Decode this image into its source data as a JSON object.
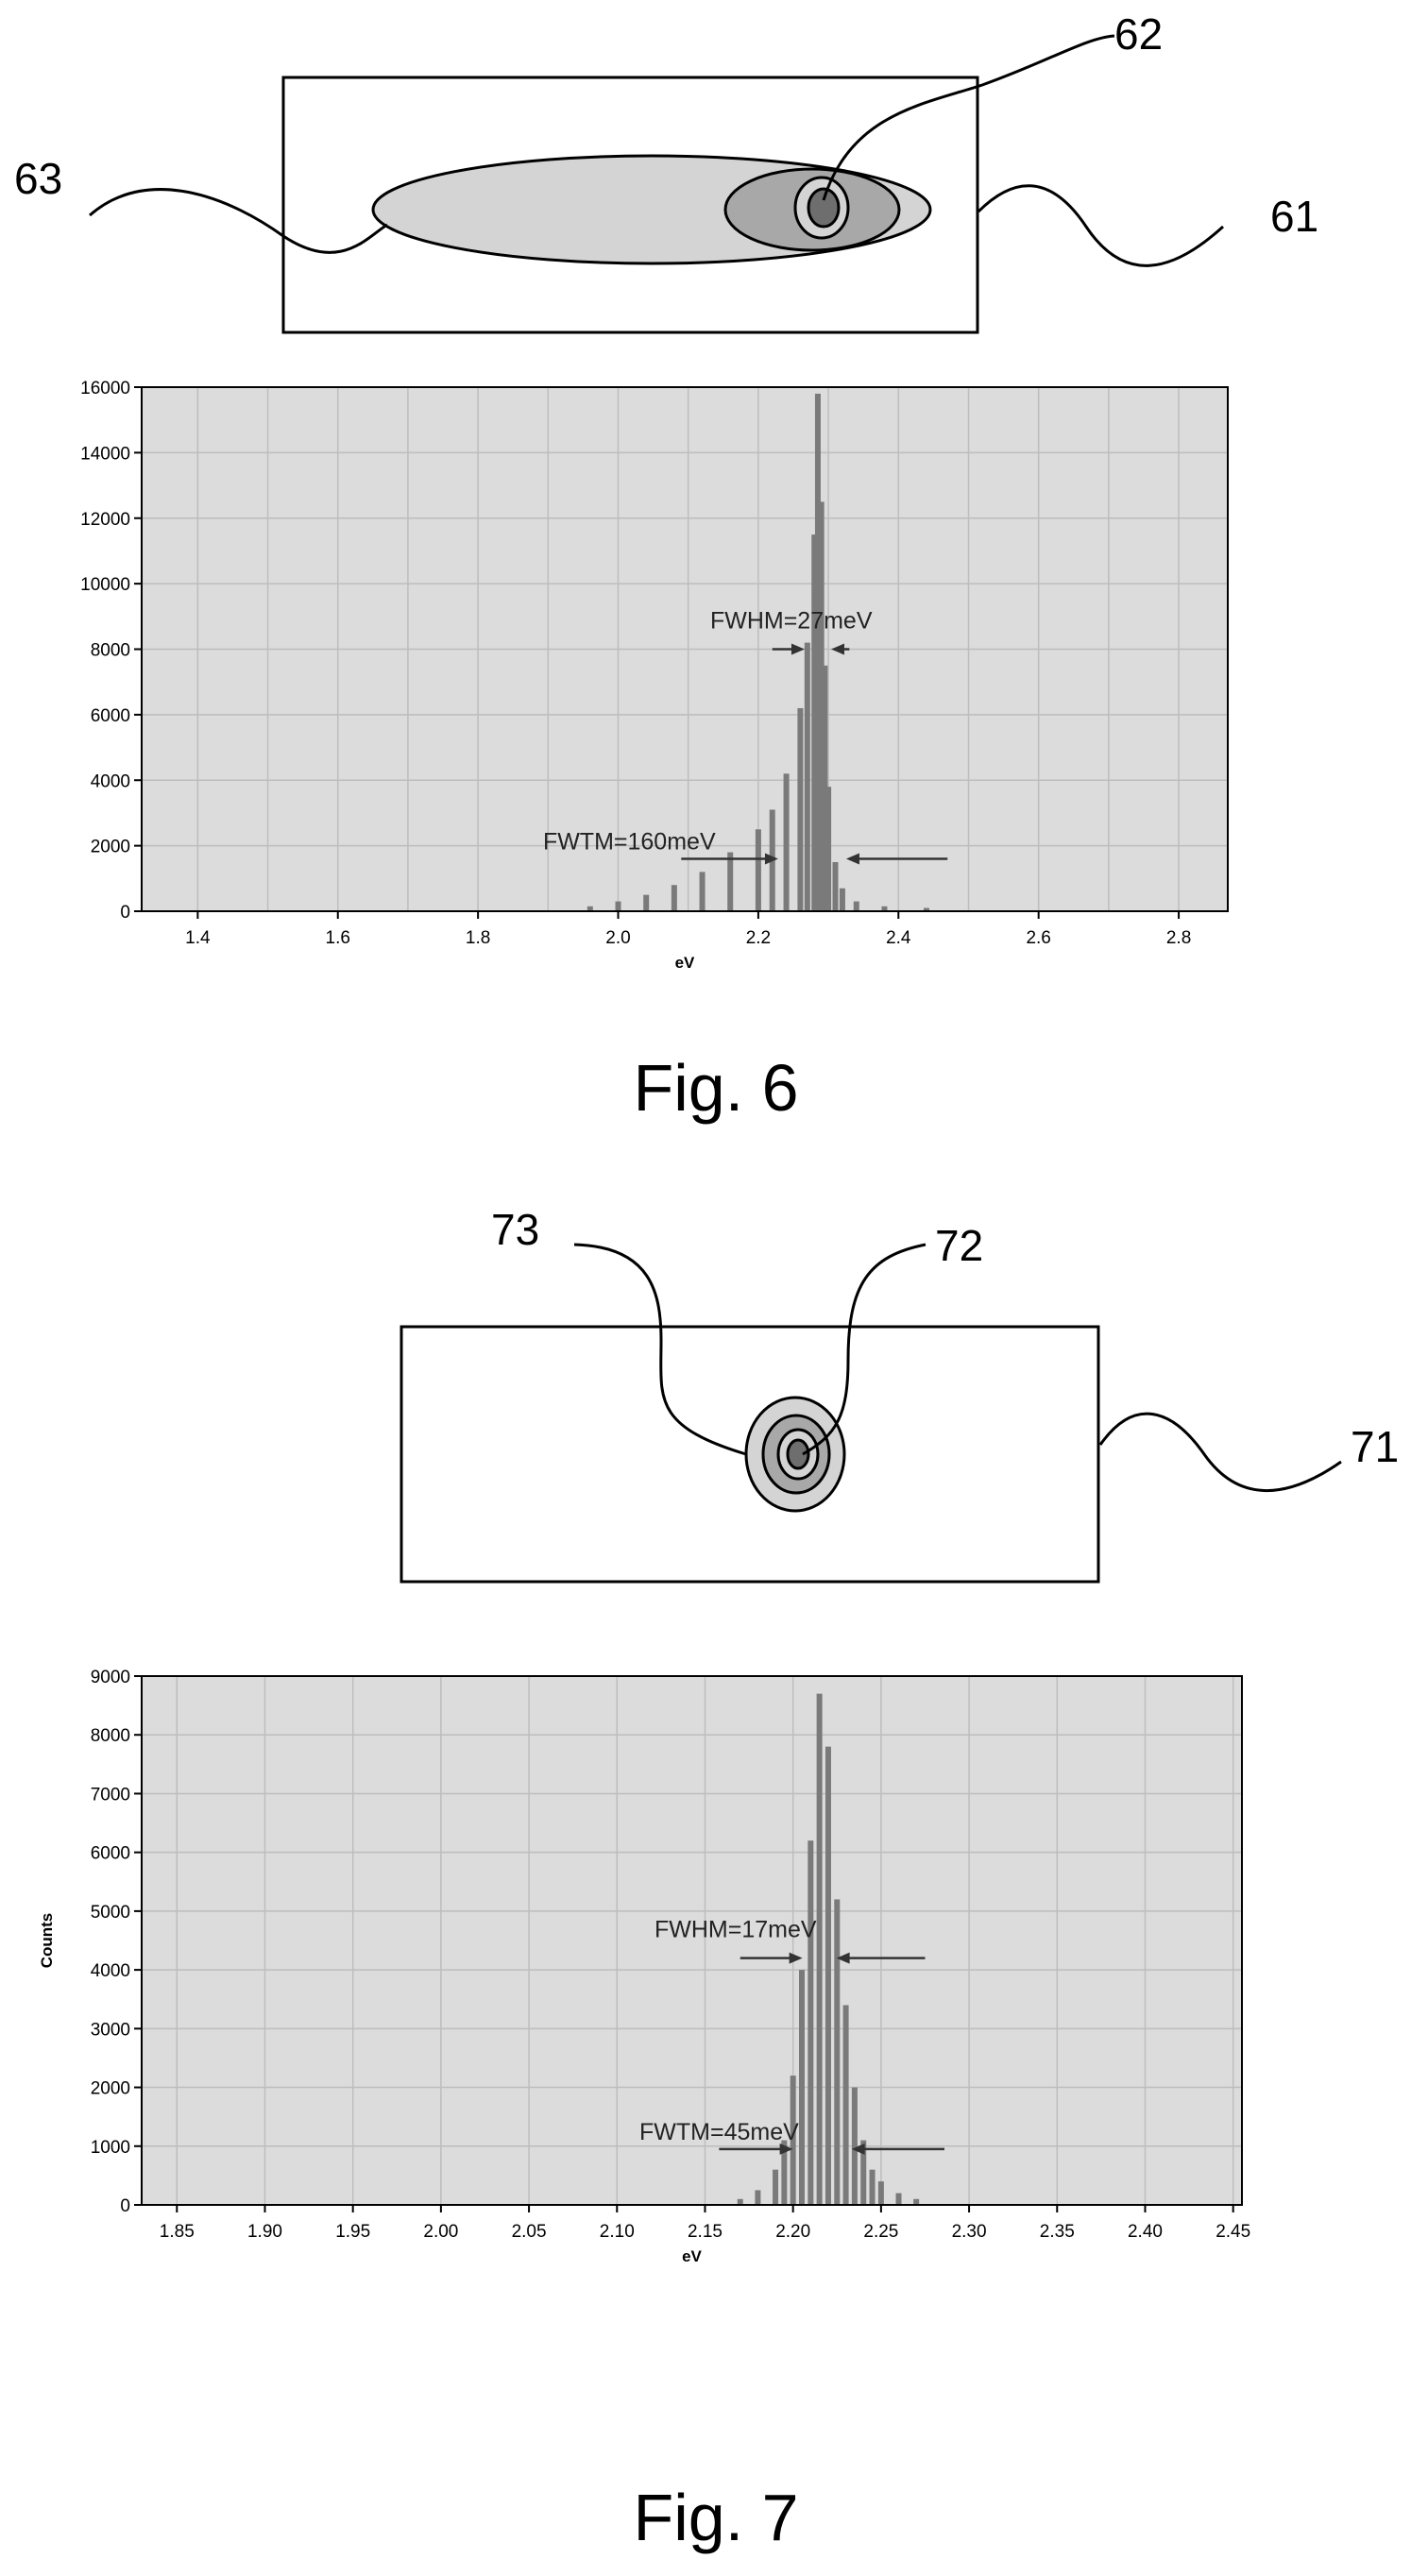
{
  "figures": [
    {
      "caption": "Fig. 6",
      "ref_labels": {
        "outer": "61",
        "middle": "62",
        "inner": "63"
      }
    },
    {
      "caption": "Fig. 7",
      "ref_labels": {
        "outer": "71",
        "middle": "72",
        "inner": "73"
      }
    }
  ],
  "colors": {
    "plot_bg": "#dcdcdc",
    "grid": "#bdbdbd",
    "histogram": "#7a7a7a",
    "shape_light": "#d4d4d4",
    "shape_mid": "#a8a8a8",
    "shape_dark": "#6e6e6e",
    "ink": "#000000"
  },
  "chart_data": [
    {
      "type": "bar",
      "title": "",
      "xlabel": "eV",
      "ylabel": "",
      "xlim": [
        1.32,
        2.87
      ],
      "ylim": [
        0,
        16000
      ],
      "grid": true,
      "legend": "none",
      "xticks": [
        "1.4",
        "1.6",
        "1.8",
        "2.0",
        "2.2",
        "2.4",
        "2.6",
        "2.8"
      ],
      "yticks": [
        "0",
        "2000",
        "4000",
        "6000",
        "8000",
        "10000",
        "12000",
        "14000",
        "16000"
      ],
      "x": [
        1.96,
        2.0,
        2.04,
        2.08,
        2.12,
        2.16,
        2.2,
        2.22,
        2.24,
        2.26,
        2.27,
        2.28,
        2.285,
        2.29,
        2.295,
        2.3,
        2.31,
        2.32,
        2.34,
        2.38,
        2.44
      ],
      "values": [
        150,
        300,
        500,
        800,
        1200,
        1800,
        2500,
        3100,
        4200,
        6200,
        8200,
        11500,
        15800,
        12500,
        7500,
        3800,
        1500,
        700,
        300,
        150,
        100
      ],
      "annotations": [
        {
          "text": "FWHM=27meV",
          "y": 8000,
          "x_left": 2.22,
          "x_right": 2.33
        },
        {
          "text": "FWTM=160meV",
          "y": 1600,
          "x_left": 2.09,
          "x_right": 2.47
        }
      ]
    },
    {
      "type": "bar",
      "title": "",
      "xlabel": "eV",
      "ylabel": "Counts",
      "xlim": [
        1.83,
        2.455
      ],
      "ylim": [
        0,
        9000
      ],
      "grid": true,
      "legend": "none",
      "xticks": [
        "1.85",
        "1.90",
        "1.95",
        "2.00",
        "2.05",
        "2.10",
        "2.15",
        "2.20",
        "2.25",
        "2.30",
        "2.35",
        "2.40",
        "2.45"
      ],
      "yticks": [
        "0",
        "1000",
        "2000",
        "3000",
        "4000",
        "5000",
        "6000",
        "7000",
        "8000",
        "9000"
      ],
      "x": [
        2.17,
        2.18,
        2.19,
        2.195,
        2.2,
        2.205,
        2.21,
        2.215,
        2.22,
        2.225,
        2.23,
        2.235,
        2.24,
        2.245,
        2.25,
        2.26,
        2.27
      ],
      "values": [
        100,
        250,
        600,
        1100,
        2200,
        4000,
        6200,
        8700,
        7800,
        5200,
        3400,
        2000,
        1100,
        600,
        400,
        200,
        100
      ],
      "annotations": [
        {
          "text": "FWHM=17meV",
          "y": 4200,
          "x_left": 2.17,
          "x_right": 2.275
        },
        {
          "text": "FWTM=45meV",
          "y": 950,
          "x_left": 2.158,
          "x_right": 2.286
        }
      ]
    }
  ]
}
